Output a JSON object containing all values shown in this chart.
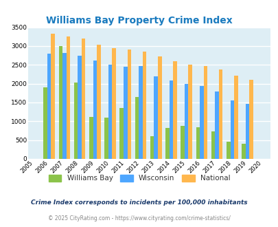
{
  "title": "Williams Bay Property Crime Index",
  "years": [
    2005,
    2006,
    2007,
    2008,
    2009,
    2010,
    2011,
    2012,
    2013,
    2014,
    2015,
    2016,
    2017,
    2018,
    2019,
    2020
  ],
  "williams_bay": [
    0,
    1900,
    2990,
    2030,
    1120,
    1100,
    1350,
    1650,
    610,
    820,
    880,
    840,
    730,
    460,
    400,
    0
  ],
  "wisconsin": [
    0,
    2800,
    2820,
    2740,
    2610,
    2510,
    2450,
    2470,
    2190,
    2090,
    1990,
    1940,
    1800,
    1550,
    1460,
    0
  ],
  "national": [
    0,
    3330,
    3250,
    3200,
    3040,
    2950,
    2910,
    2860,
    2720,
    2600,
    2500,
    2470,
    2380,
    2210,
    2110,
    0
  ],
  "bar_width": 0.25,
  "colors": {
    "williams_bay": "#8bc34a",
    "wisconsin": "#4da6ff",
    "national": "#ffb74d"
  },
  "ylim": [
    0,
    3500
  ],
  "yticks": [
    0,
    500,
    1000,
    1500,
    2000,
    2500,
    3000,
    3500
  ],
  "bg_color": "#deeef5",
  "grid_color": "#ffffff",
  "title_color": "#1a7bbf",
  "title_fontsize": 10,
  "legend_labels": [
    "Williams Bay",
    "Wisconsin",
    "National"
  ],
  "legend_label_color": "#333333",
  "footnote1": "Crime Index corresponds to incidents per 100,000 inhabitants",
  "footnote1_color": "#1a3a6b",
  "footnote2": "© 2025 CityRating.com - https://www.cityrating.com/crime-statistics/",
  "footnote2_color": "#888888"
}
